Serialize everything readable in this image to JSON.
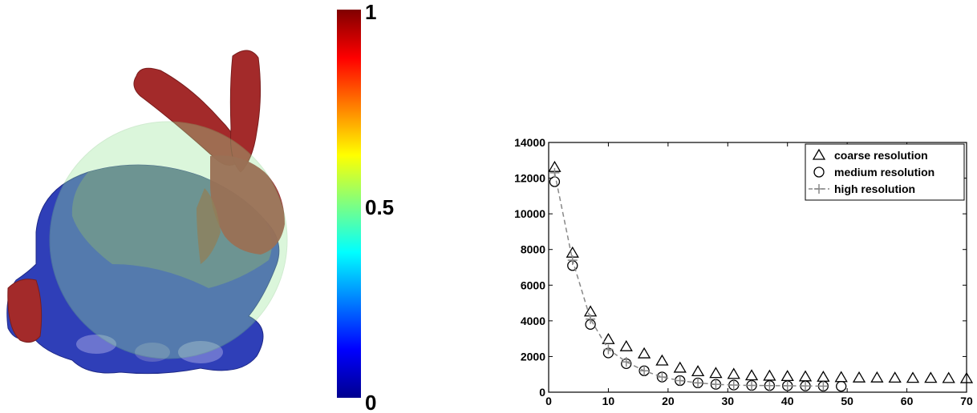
{
  "figure": {
    "left_panel": {
      "colorbar": {
        "tick_labels": [
          "0",
          "0.5",
          "1"
        ],
        "colors": [
          "#00008f",
          "#0000ff",
          "#00ffff",
          "#ffff00",
          "#ff0000",
          "#800000"
        ]
      }
    }
  },
  "chart_data": {
    "type": "scatter",
    "title": "",
    "xlabel": "",
    "ylabel": "",
    "xlim": [
      0,
      70
    ],
    "ylim": [
      0,
      14000
    ],
    "x_ticks": [
      0,
      10,
      20,
      30,
      40,
      50,
      60,
      70
    ],
    "y_ticks": [
      0,
      2000,
      4000,
      6000,
      8000,
      10000,
      12000,
      14000
    ],
    "legend_position": "top-right",
    "grid": false,
    "series": [
      {
        "name": "coarse resolution",
        "marker": "triangle",
        "color": "#000000",
        "x": [
          1,
          4,
          7,
          10,
          13,
          16,
          19,
          22,
          25,
          28,
          31,
          34,
          37,
          40,
          43,
          46,
          49,
          52,
          55,
          58,
          61,
          64,
          67,
          70
        ],
        "y": [
          12600,
          7800,
          4500,
          2950,
          2550,
          2150,
          1750,
          1350,
          1150,
          1050,
          1000,
          920,
          900,
          880,
          860,
          840,
          820,
          800,
          800,
          790,
          780,
          780,
          770,
          760
        ]
      },
      {
        "name": "medium resolution",
        "marker": "circle",
        "color": "#000000",
        "x": [
          1,
          4,
          7,
          10,
          13,
          16,
          19,
          22,
          25,
          28,
          31,
          34,
          37,
          40,
          43,
          46,
          49
        ],
        "y": [
          11800,
          7100,
          3800,
          2200,
          1600,
          1200,
          850,
          650,
          520,
          440,
          400,
          380,
          370,
          360,
          350,
          340,
          330
        ]
      },
      {
        "name": "high resolution",
        "marker": "plus-dashed-line",
        "color": "#888888",
        "x": [
          1,
          4,
          7,
          10,
          13,
          16,
          19,
          22,
          25,
          28,
          31,
          34,
          37,
          40,
          43,
          46
        ],
        "y": [
          12300,
          7400,
          4100,
          2400,
          1700,
          1200,
          850,
          650,
          520,
          440,
          400,
          380,
          370,
          360,
          350,
          340
        ]
      }
    ]
  }
}
